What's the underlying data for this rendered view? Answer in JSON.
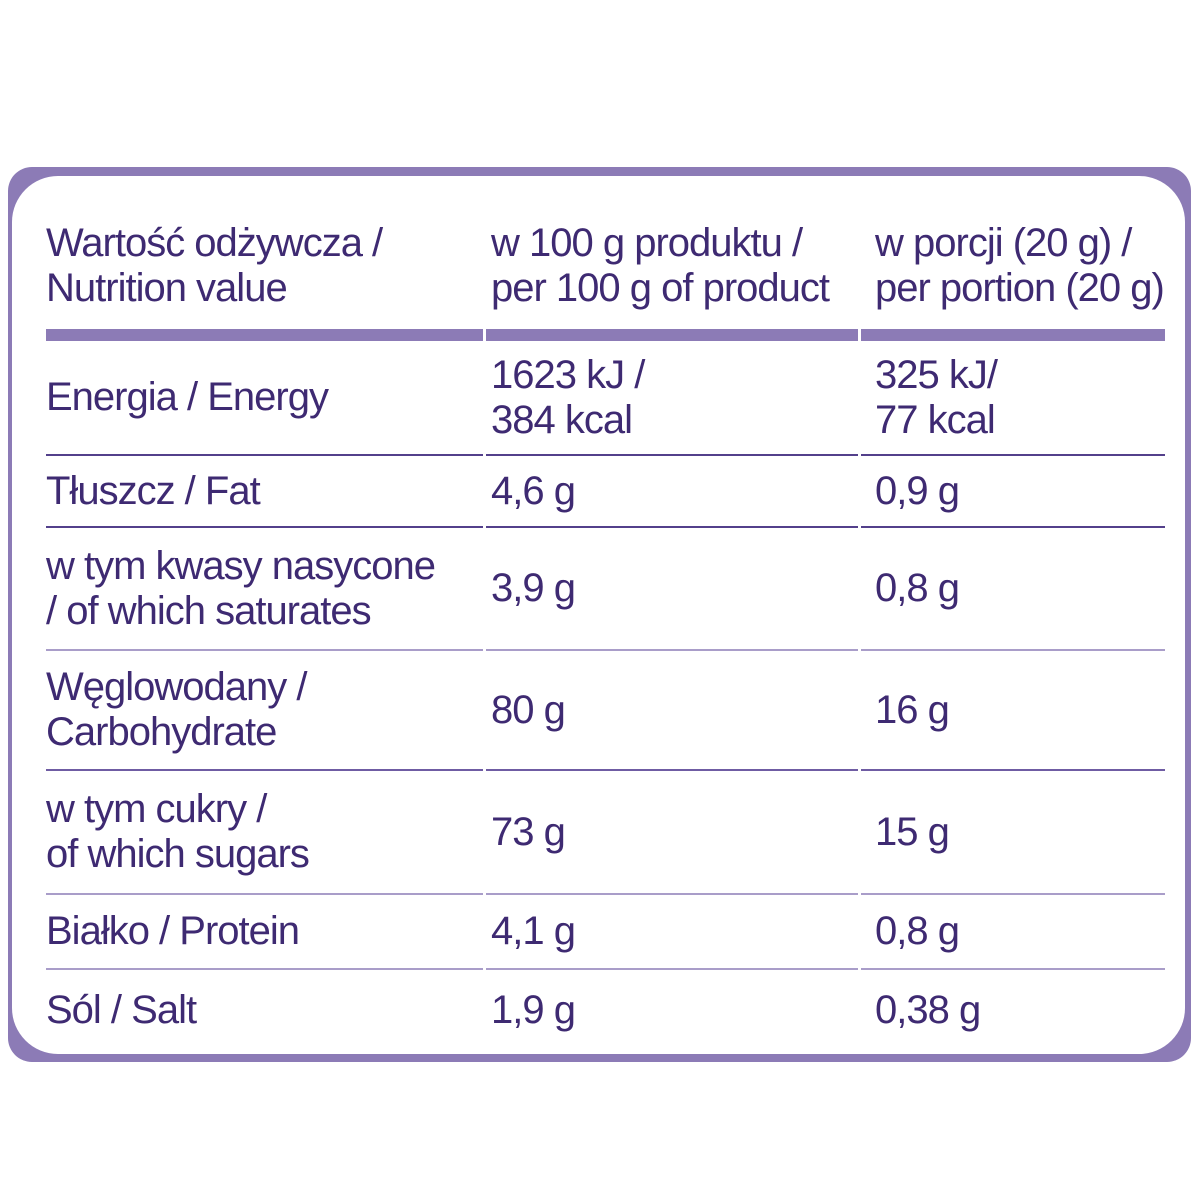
{
  "colors": {
    "text_purple": "#3E2A72",
    "border_purple": "#8C7BB6",
    "header_band_purple": "#8C7BB6",
    "separator_purple": "#6F5CA3",
    "background": "#FFFFFF"
  },
  "table": {
    "header": {
      "col1": [
        "Wartość odżywcza /",
        "Nutrition value"
      ],
      "col2": [
        "w 100 g produktu /",
        "per 100 g of product"
      ],
      "col3": [
        "w porcji (20 g) /",
        "per portion (20 g)"
      ]
    },
    "rows": [
      {
        "label": [
          "Energia / Energy"
        ],
        "per100": [
          "1623 kJ /",
          "384 kcal"
        ],
        "portion": [
          "325 kJ/",
          "77 kcal"
        ]
      },
      {
        "label": [
          "Tłuszcz / Fat"
        ],
        "per100": [
          "4,6 g"
        ],
        "portion": [
          "0,9 g"
        ]
      },
      {
        "label": [
          "w tym kwasy nasycone",
          "/ of which saturates"
        ],
        "per100": [
          "3,9 g"
        ],
        "portion": [
          "0,8 g"
        ]
      },
      {
        "label": [
          "Węglowodany /",
          "Carbohydrate"
        ],
        "per100": [
          "80 g"
        ],
        "portion": [
          "16 g"
        ]
      },
      {
        "label": [
          "w tym cukry /",
          "of which sugars"
        ],
        "per100": [
          "73 g"
        ],
        "portion": [
          "15 g"
        ]
      },
      {
        "label": [
          "Białko / Protein"
        ],
        "per100": [
          "4,1 g"
        ],
        "portion": [
          "0,8 g"
        ]
      },
      {
        "label": [
          "Sól / Salt"
        ],
        "per100": [
          "1,9 g"
        ],
        "portion": [
          "0,38 g"
        ]
      }
    ]
  }
}
